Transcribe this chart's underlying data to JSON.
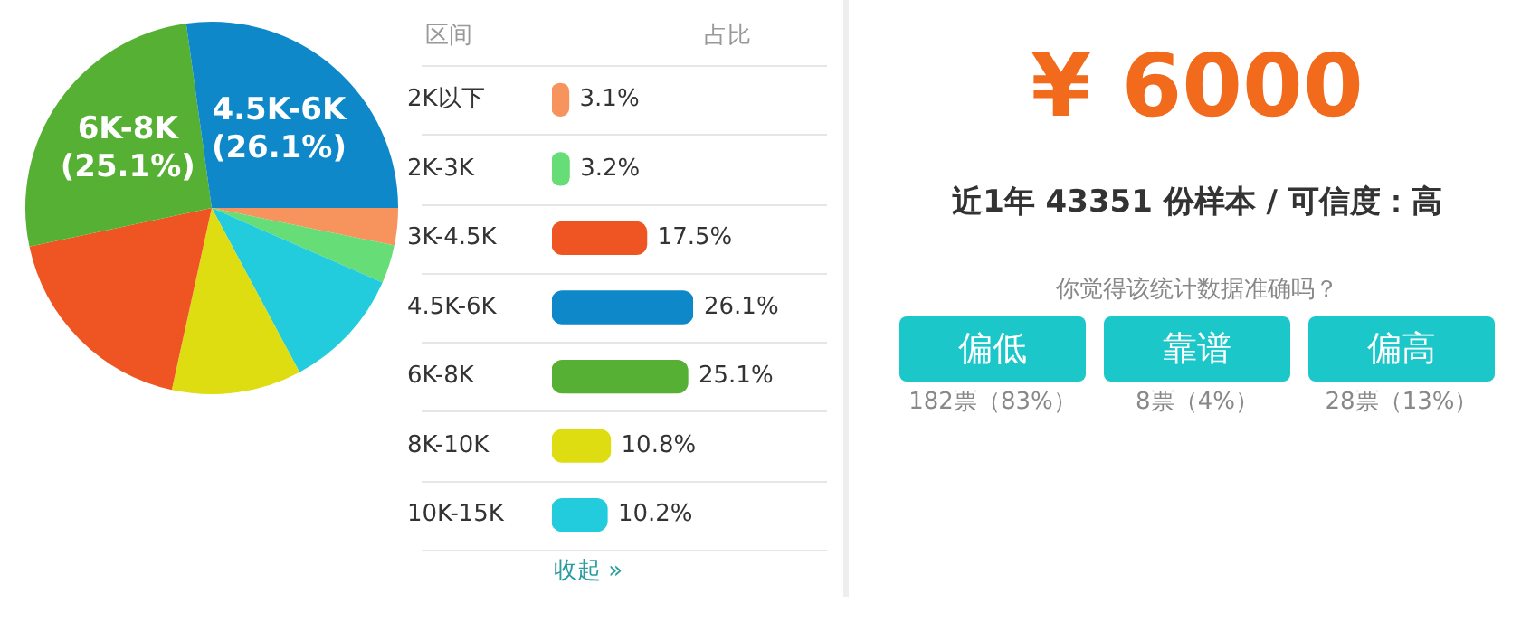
{
  "chart_data": [
    {
      "type": "pie",
      "categories": [
        null,
        null,
        null,
        null,
        null,
        "6K-8K",
        "4.5K-6K"
      ],
      "values": [
        3.1,
        3.2,
        10.2,
        10.8,
        17.5,
        25.1,
        26.1
      ],
      "colors": [
        "#f7945e",
        "#66dd77",
        "#22ccdd",
        "#dddd11",
        "#ee5522",
        "#55b033",
        "#0e88c8"
      ],
      "value_labels": [
        null,
        null,
        null,
        null,
        null,
        "(25.1%)",
        "(26.1%)"
      ],
      "legend": false
    },
    {
      "type": "bar",
      "orientation": "horizontal",
      "ylabel": "区间",
      "xlabel": "占比",
      "categories": [
        "2K以下",
        "2K-3K",
        "3K-4.5K",
        "4.5K-6K",
        "6K-8K",
        "8K-10K",
        "10K-15K"
      ],
      "values": [
        3.1,
        3.2,
        17.5,
        26.1,
        25.1,
        10.8,
        10.2
      ],
      "colors": [
        "#f7945e",
        "#66dd77",
        "#ee5522",
        "#0e88c8",
        "#55b033",
        "#dddd11",
        "#22ccdd"
      ],
      "value_labels": [
        "3.1%",
        "3.2%",
        "17.5%",
        "26.1%",
        "25.1%",
        "10.8%",
        "10.2%"
      ],
      "annotations": [
        "收起 »"
      ],
      "legend": false
    },
    {
      "type": "other",
      "title": "¥ 6000",
      "subtitle": "近1年 43351 份样本 / 可信度：高",
      "annotations": [
        "你觉得该统计数据准确吗？",
        "偏低",
        "靠谱",
        "偏高",
        "182票（83%）",
        "8票（4%）",
        "28票（13%）"
      ]
    }
  ]
}
